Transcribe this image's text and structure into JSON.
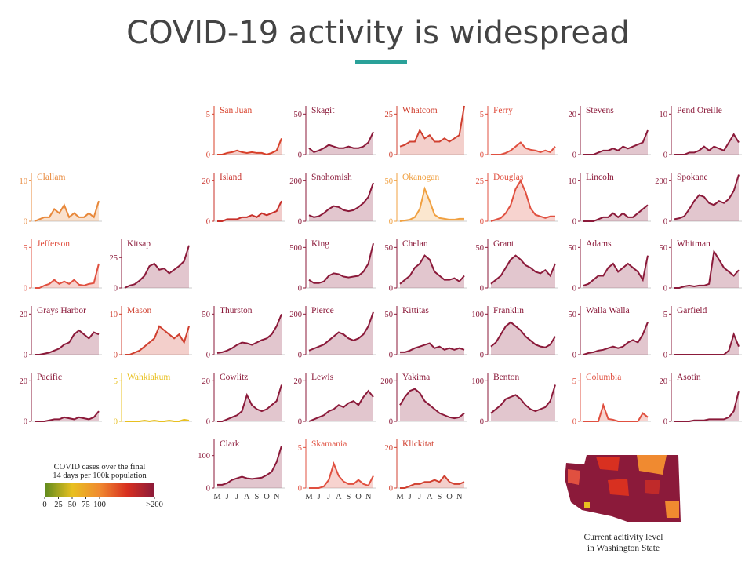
{
  "page": {
    "title": "COVID-19 activity is widespread"
  },
  "chart_data": [
    {
      "type": "line",
      "title": "Clallam",
      "color": "#e8883a",
      "ylim": [
        0,
        12
      ],
      "yticks": [
        0,
        10
      ],
      "values": [
        0,
        0.5,
        1,
        1,
        3,
        2,
        4,
        1,
        2,
        1,
        1,
        2,
        1,
        5
      ]
    },
    {
      "type": "line",
      "title": "San Juan",
      "color": "#d8402a",
      "ylim": [
        0,
        6
      ],
      "yticks": [
        0,
        5
      ],
      "values": [
        0,
        0,
        0.2,
        0.3,
        0.5,
        0.3,
        0.2,
        0.3,
        0.2,
        0.2,
        0,
        0.2,
        0.5,
        2
      ]
    },
    {
      "type": "line",
      "title": "Skagit",
      "color": "#8b1a3a",
      "ylim": [
        0,
        60
      ],
      "yticks": [
        0,
        50
      ],
      "values": [
        8,
        3,
        5,
        8,
        12,
        10,
        8,
        8,
        10,
        8,
        8,
        10,
        15,
        28
      ]
    },
    {
      "type": "line",
      "title": "Whatcom",
      "color": "#d04030",
      "ylim": [
        0,
        30
      ],
      "yticks": [
        0,
        25
      ],
      "values": [
        5,
        6,
        8,
        8,
        15,
        10,
        12,
        8,
        8,
        10,
        8,
        10,
        12,
        30
      ]
    },
    {
      "type": "line",
      "title": "Ferry",
      "color": "#e05040",
      "ylim": [
        0,
        6
      ],
      "yticks": [
        0,
        5
      ],
      "values": [
        0,
        0,
        0,
        0.2,
        0.5,
        1,
        1.5,
        0.8,
        0.6,
        0.5,
        0.3,
        0.5,
        0.3,
        1
      ]
    },
    {
      "type": "line",
      "title": "Stevens",
      "color": "#8b1a3a",
      "ylim": [
        0,
        24
      ],
      "yticks": [
        0,
        20
      ],
      "values": [
        0,
        0,
        0,
        1,
        2,
        2,
        3,
        2,
        4,
        3,
        4,
        5,
        6,
        12
      ]
    },
    {
      "type": "line",
      "title": "Pend Oreille",
      "color": "#8b1a3a",
      "ylim": [
        0,
        12
      ],
      "yticks": [
        0,
        10
      ],
      "values": [
        0,
        0,
        0,
        0.5,
        0.5,
        1,
        2,
        1,
        2,
        1.5,
        1,
        3,
        5,
        3
      ]
    },
    {
      "type": "line",
      "title": "Island",
      "color": "#c8302a",
      "ylim": [
        0,
        24
      ],
      "yticks": [
        0,
        20
      ],
      "values": [
        0,
        0,
        1,
        1,
        1,
        2,
        2,
        3,
        2,
        4,
        3,
        4,
        5,
        10
      ]
    },
    {
      "type": "line",
      "title": "Snohomish",
      "color": "#8b1a3a",
      "ylim": [
        0,
        240
      ],
      "yticks": [
        0,
        200
      ],
      "values": [
        30,
        20,
        25,
        40,
        60,
        75,
        70,
        55,
        50,
        55,
        70,
        90,
        120,
        190
      ]
    },
    {
      "type": "line",
      "title": "Okanogan",
      "color": "#f0a040",
      "ylim": [
        0,
        60
      ],
      "yticks": [
        0,
        50
      ],
      "values": [
        0,
        1,
        2,
        5,
        15,
        40,
        25,
        8,
        4,
        3,
        2,
        2,
        3,
        3
      ]
    },
    {
      "type": "line",
      "title": "Douglas",
      "color": "#e05040",
      "ylim": [
        0,
        30
      ],
      "yticks": [
        0,
        25
      ],
      "values": [
        0,
        1,
        2,
        5,
        10,
        20,
        25,
        18,
        8,
        4,
        3,
        2,
        3,
        3
      ]
    },
    {
      "type": "line",
      "title": "Lincoln",
      "color": "#8b1a3a",
      "ylim": [
        0,
        12
      ],
      "yticks": [
        0,
        10
      ],
      "values": [
        0,
        0,
        0,
        0.5,
        1,
        1,
        2,
        1,
        2,
        1,
        1,
        2,
        3,
        4
      ]
    },
    {
      "type": "line",
      "title": "Spokane",
      "color": "#8b1a3a",
      "ylim": [
        0,
        240
      ],
      "yticks": [
        0,
        200
      ],
      "values": [
        10,
        15,
        25,
        60,
        100,
        130,
        120,
        90,
        80,
        100,
        90,
        110,
        150,
        230
      ]
    },
    {
      "type": "line",
      "title": "Jefferson",
      "color": "#e05040",
      "ylim": [
        0,
        6
      ],
      "yticks": [
        0,
        5
      ],
      "values": [
        0,
        0,
        0.3,
        0.5,
        1,
        0.5,
        0.8,
        0.5,
        1,
        0.4,
        0.3,
        0.5,
        0.6,
        3
      ]
    },
    {
      "type": "line",
      "title": "Kitsap",
      "color": "#8b1a3a",
      "ylim": [
        0,
        40
      ],
      "yticks": [
        0,
        25
      ],
      "values": [
        0,
        2,
        3,
        6,
        10,
        18,
        20,
        15,
        16,
        12,
        15,
        18,
        22,
        35
      ]
    },
    {
      "type": "line",
      "title": "King",
      "color": "#8b1a3a",
      "ylim": [
        0,
        600
      ],
      "yticks": [
        0,
        500
      ],
      "values": [
        100,
        60,
        60,
        80,
        150,
        180,
        170,
        140,
        130,
        140,
        150,
        200,
        300,
        550
      ]
    },
    {
      "type": "line",
      "title": "Chelan",
      "color": "#8b1a3a",
      "ylim": [
        0,
        60
      ],
      "yticks": [
        0,
        50
      ],
      "values": [
        5,
        10,
        15,
        25,
        30,
        40,
        35,
        20,
        15,
        10,
        10,
        12,
        8,
        15
      ]
    },
    {
      "type": "line",
      "title": "Grant",
      "color": "#8b1a3a",
      "ylim": [
        0,
        60
      ],
      "yticks": [
        0,
        50
      ],
      "values": [
        5,
        10,
        15,
        25,
        35,
        40,
        35,
        28,
        25,
        20,
        18,
        22,
        15,
        30
      ]
    },
    {
      "type": "line",
      "title": "Adams",
      "color": "#8b1a3a",
      "ylim": [
        0,
        60
      ],
      "yticks": [
        0,
        50
      ],
      "values": [
        3,
        5,
        10,
        15,
        15,
        25,
        30,
        20,
        25,
        30,
        25,
        20,
        10,
        40
      ]
    },
    {
      "type": "line",
      "title": "Whitman",
      "color": "#8b1a3a",
      "ylim": [
        0,
        60
      ],
      "yticks": [
        0,
        50
      ],
      "values": [
        0,
        0,
        2,
        3,
        2,
        3,
        3,
        5,
        45,
        35,
        25,
        20,
        15,
        22
      ]
    },
    {
      "type": "line",
      "title": "Grays Harbor",
      "color": "#8b1a3a",
      "ylim": [
        0,
        24
      ],
      "yticks": [
        0,
        20
      ],
      "values": [
        0,
        0,
        0.5,
        1,
        2,
        3,
        5,
        6,
        10,
        12,
        10,
        8,
        11,
        10
      ]
    },
    {
      "type": "line",
      "title": "Mason",
      "color": "#d04030",
      "ylim": [
        0,
        12
      ],
      "yticks": [
        0,
        10
      ],
      "values": [
        0,
        0,
        0.5,
        1,
        2,
        3,
        4,
        7,
        6,
        5,
        4,
        5,
        3,
        7
      ]
    },
    {
      "type": "line",
      "title": "Thurston",
      "color": "#8b1a3a",
      "ylim": [
        0,
        60
      ],
      "yticks": [
        0,
        50
      ],
      "values": [
        2,
        3,
        5,
        8,
        12,
        15,
        14,
        12,
        15,
        18,
        20,
        25,
        35,
        50
      ]
    },
    {
      "type": "line",
      "title": "Pierce",
      "color": "#8b1a3a",
      "ylim": [
        0,
        240
      ],
      "yticks": [
        0,
        200
      ],
      "values": [
        20,
        30,
        40,
        50,
        70,
        90,
        110,
        100,
        80,
        70,
        80,
        100,
        140,
        210
      ]
    },
    {
      "type": "line",
      "title": "Kittitas",
      "color": "#8b1a3a",
      "ylim": [
        0,
        60
      ],
      "yticks": [
        0,
        50
      ],
      "values": [
        3,
        3,
        5,
        8,
        10,
        12,
        14,
        8,
        10,
        6,
        8,
        6,
        8,
        6
      ]
    },
    {
      "type": "line",
      "title": "Franklin",
      "color": "#8b1a3a",
      "ylim": [
        0,
        120
      ],
      "yticks": [
        0,
        100
      ],
      "values": [
        20,
        30,
        50,
        70,
        80,
        70,
        60,
        45,
        35,
        25,
        20,
        18,
        25,
        45
      ]
    },
    {
      "type": "line",
      "title": "Walla Walla",
      "color": "#8b1a3a",
      "ylim": [
        0,
        60
      ],
      "yticks": [
        0,
        50
      ],
      "values": [
        0,
        2,
        3,
        5,
        6,
        8,
        10,
        8,
        10,
        15,
        18,
        15,
        25,
        40
      ]
    },
    {
      "type": "line",
      "title": "Garfield",
      "color": "#8b1a3a",
      "ylim": [
        0,
        6
      ],
      "yticks": [
        0,
        5
      ],
      "values": [
        0,
        0,
        0,
        0,
        0,
        0,
        0,
        0,
        0,
        0,
        0,
        0.5,
        2.5,
        1
      ]
    },
    {
      "type": "line",
      "title": "Pacific",
      "color": "#8b1a3a",
      "ylim": [
        0,
        24
      ],
      "yticks": [
        0,
        20
      ],
      "values": [
        0,
        0,
        0,
        0.5,
        1,
        1,
        2,
        1.5,
        1,
        2,
        1.5,
        1,
        2,
        5
      ]
    },
    {
      "type": "line",
      "title": "Wahkiakum",
      "color": "#e8c020",
      "ylim": [
        0,
        6
      ],
      "yticks": [
        0,
        5
      ],
      "values": [
        0,
        0,
        0,
        0,
        0.1,
        0,
        0.1,
        0,
        0,
        0.1,
        0,
        0,
        0.2,
        0.1
      ]
    },
    {
      "type": "line",
      "title": "Cowlitz",
      "color": "#8b1a3a",
      "ylim": [
        0,
        24
      ],
      "yticks": [
        0,
        20
      ],
      "values": [
        0,
        0,
        1,
        2,
        3,
        5,
        13,
        8,
        6,
        5,
        6,
        8,
        10,
        18
      ]
    },
    {
      "type": "line",
      "title": "Lewis",
      "color": "#8b1a3a",
      "ylim": [
        0,
        24
      ],
      "yticks": [
        0,
        20
      ],
      "values": [
        0,
        1,
        2,
        3,
        5,
        6,
        8,
        7,
        9,
        10,
        8,
        12,
        15,
        12
      ]
    },
    {
      "type": "line",
      "title": "Yakima",
      "color": "#8b1a3a",
      "ylim": [
        0,
        240
      ],
      "yticks": [
        0,
        200
      ],
      "values": [
        80,
        120,
        150,
        160,
        140,
        100,
        80,
        60,
        40,
        30,
        20,
        15,
        20,
        40
      ]
    },
    {
      "type": "line",
      "title": "Benton",
      "color": "#8b1a3a",
      "ylim": [
        0,
        120
      ],
      "yticks": [
        0,
        100
      ],
      "values": [
        20,
        30,
        40,
        55,
        60,
        65,
        55,
        40,
        30,
        25,
        30,
        35,
        50,
        90
      ]
    },
    {
      "type": "line",
      "title": "Columbia",
      "color": "#e05040",
      "ylim": [
        0,
        6
      ],
      "yticks": [
        0,
        5
      ],
      "values": [
        0,
        0,
        0,
        0,
        2,
        0.3,
        0.2,
        0,
        0,
        0,
        0,
        0,
        1,
        0.5
      ]
    },
    {
      "type": "line",
      "title": "Asotin",
      "color": "#8b1a3a",
      "ylim": [
        0,
        24
      ],
      "yticks": [
        0,
        20
      ],
      "values": [
        0,
        0,
        0,
        0,
        0.5,
        0.5,
        0.5,
        1,
        1,
        1,
        1,
        2,
        5,
        15
      ]
    },
    {
      "type": "line",
      "title": "Clark",
      "color": "#8b1a3a",
      "ylim": [
        0,
        150
      ],
      "yticks": [
        0,
        100
      ],
      "categories": [
        "M",
        null,
        "J",
        null,
        "J",
        null,
        "A",
        null,
        "S",
        null,
        "O",
        null,
        "N",
        null
      ],
      "values": [
        10,
        10,
        15,
        25,
        30,
        35,
        30,
        28,
        30,
        32,
        40,
        50,
        80,
        130
      ]
    },
    {
      "type": "line",
      "title": "Skamania",
      "color": "#e05040",
      "ylim": [
        0,
        6
      ],
      "yticks": [
        0,
        5
      ],
      "categories": [
        "M",
        null,
        "J",
        null,
        "J",
        null,
        "A",
        null,
        "S",
        null,
        "O",
        null,
        "N",
        null
      ],
      "values": [
        0,
        0,
        0,
        0.2,
        1,
        3,
        1.5,
        0.8,
        0.5,
        0.5,
        1,
        0.5,
        0.3,
        1.5
      ]
    },
    {
      "type": "line",
      "title": "Klickitat",
      "color": "#d04030",
      "ylim": [
        0,
        24
      ],
      "yticks": [
        0,
        20
      ],
      "categories": [
        "M",
        null,
        "J",
        null,
        "J",
        null,
        "A",
        null,
        "S",
        null,
        "O",
        null,
        "N",
        null
      ],
      "values": [
        0,
        0,
        1,
        2,
        2,
        3,
        3,
        4,
        3,
        6,
        3,
        2,
        2,
        3
      ]
    }
  ],
  "legend": {
    "type": "colorbar",
    "title": [
      "COVID cases over the final",
      "14 days per 100k population"
    ],
    "zlim": [
      0,
      200
    ],
    "ticks": [
      0,
      25,
      50,
      75,
      100,
      {
        "value": 200,
        "label": ">200"
      }
    ],
    "colors": [
      "#5f8a1e",
      "#e8c020",
      "#f08a30",
      "#d83020",
      "#8b1a3a"
    ]
  },
  "map": {
    "caption": [
      "Current acitivity level",
      "in Washington State"
    ]
  }
}
